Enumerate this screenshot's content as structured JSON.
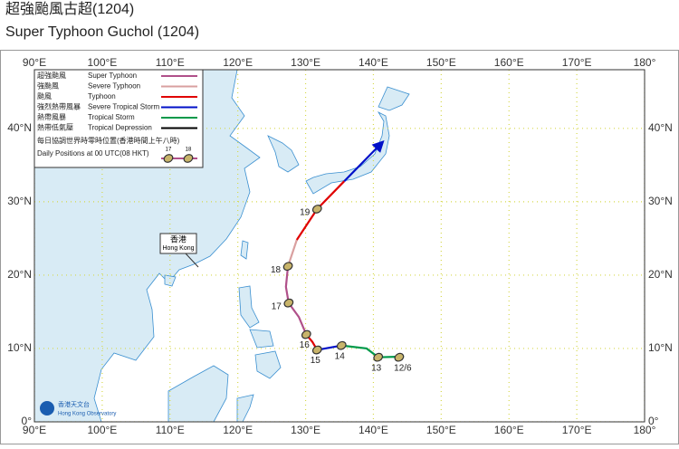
{
  "title_zh": "超強颱風古超(1204)",
  "title_en": "Super Typhoon Guchol (1204)",
  "map": {
    "lonlim": [
      90,
      180
    ],
    "latlim": [
      0,
      48
    ],
    "lon_ticks": [
      {
        "value": 90,
        "label": "90°E"
      },
      {
        "value": 100,
        "label": "100°E"
      },
      {
        "value": 110,
        "label": "110°E"
      },
      {
        "value": 120,
        "label": "120°E"
      },
      {
        "value": 130,
        "label": "130°E"
      },
      {
        "value": 140,
        "label": "140°E"
      },
      {
        "value": 150,
        "label": "150°E"
      },
      {
        "value": 160,
        "label": "160°E"
      },
      {
        "value": 170,
        "label": "170°E"
      },
      {
        "value": 180,
        "label": "180°"
      }
    ],
    "lat_ticks": [
      {
        "value": 0,
        "label": "0°"
      },
      {
        "value": 10,
        "label": "10°N"
      },
      {
        "value": 20,
        "label": "20°N"
      },
      {
        "value": 30,
        "label": "30°N"
      },
      {
        "value": 40,
        "label": "40°N"
      }
    ],
    "grid_color": "#d6d84a"
  },
  "legend": [
    {
      "zh": "超強颱風",
      "en": "Super Typhoon",
      "color": "#b0508a"
    },
    {
      "zh": "強颱風",
      "en": "Severe Typhoon",
      "color": "#d9a0a0"
    },
    {
      "zh": "颱風",
      "en": "Typhoon",
      "color": "#e00000"
    },
    {
      "zh": "強烈熱帶風暴",
      "en": "Severe Tropical Storm",
      "color": "#0010c8"
    },
    {
      "zh": "熱帶風暴",
      "en": "Tropical Storm",
      "color": "#00994a"
    },
    {
      "zh": "熱帶低氣壓",
      "en": "Tropical Depression",
      "color": "#000000"
    }
  ],
  "legend_daily": {
    "zh": "每日協調世界時零時位置(香港時間上午八時)",
    "en": "Daily Positions at 00 UTC(08 HKT)",
    "samples": [
      "17",
      "18"
    ]
  },
  "track": [
    {
      "color": "#00994a",
      "points": [
        {
          "lon": 144.5,
          "lat": 8.9
        },
        {
          "lon": 140.7,
          "lat": 8.8
        },
        {
          "lon": 139.0,
          "lat": 10.0
        },
        {
          "lon": 135.3,
          "lat": 10.4
        }
      ]
    },
    {
      "color": "#0010c8",
      "points": [
        {
          "lon": 135.3,
          "lat": 10.4
        },
        {
          "lon": 131.7,
          "lat": 9.8
        }
      ]
    },
    {
      "color": "#e00000",
      "points": [
        {
          "lon": 131.7,
          "lat": 9.8
        },
        {
          "lon": 131.0,
          "lat": 10.9
        },
        {
          "lon": 130.1,
          "lat": 11.9
        }
      ]
    },
    {
      "color": "#b0508a",
      "points": [
        {
          "lon": 130.1,
          "lat": 11.9
        },
        {
          "lon": 129.0,
          "lat": 14.3
        },
        {
          "lon": 127.5,
          "lat": 16.2
        },
        {
          "lon": 127.1,
          "lat": 18.4
        },
        {
          "lon": 127.4,
          "lat": 21.2
        }
      ]
    },
    {
      "color": "#d9a0a0",
      "points": [
        {
          "lon": 127.4,
          "lat": 21.2
        },
        {
          "lon": 128.7,
          "lat": 24.8
        }
      ]
    },
    {
      "color": "#e00000",
      "points": [
        {
          "lon": 128.7,
          "lat": 24.8
        },
        {
          "lon": 131.7,
          "lat": 29.0
        },
        {
          "lon": 135.7,
          "lat": 32.8
        }
      ]
    },
    {
      "color": "#0010c8",
      "points": [
        {
          "lon": 135.7,
          "lat": 32.8
        },
        {
          "lon": 141.0,
          "lat": 37.8
        }
      ]
    }
  ],
  "positions": [
    {
      "label": "12/6",
      "lon": 143.8,
      "lat": 8.8
    },
    {
      "label": "13",
      "lon": 140.7,
      "lat": 8.8
    },
    {
      "label": "14",
      "lon": 135.3,
      "lat": 10.4
    },
    {
      "label": "15",
      "lon": 131.7,
      "lat": 9.8
    },
    {
      "label": "16",
      "lon": 130.1,
      "lat": 11.9
    },
    {
      "label": "17",
      "lon": 127.5,
      "lat": 16.2
    },
    {
      "label": "18",
      "lon": 127.4,
      "lat": 21.2
    },
    {
      "label": "19",
      "lon": 131.7,
      "lat": 29.0
    }
  ],
  "place": {
    "zh": "香港",
    "en": "Hong Kong"
  },
  "logo": {
    "zh": "香港天文台",
    "en": "Hong Kong Observatory"
  }
}
